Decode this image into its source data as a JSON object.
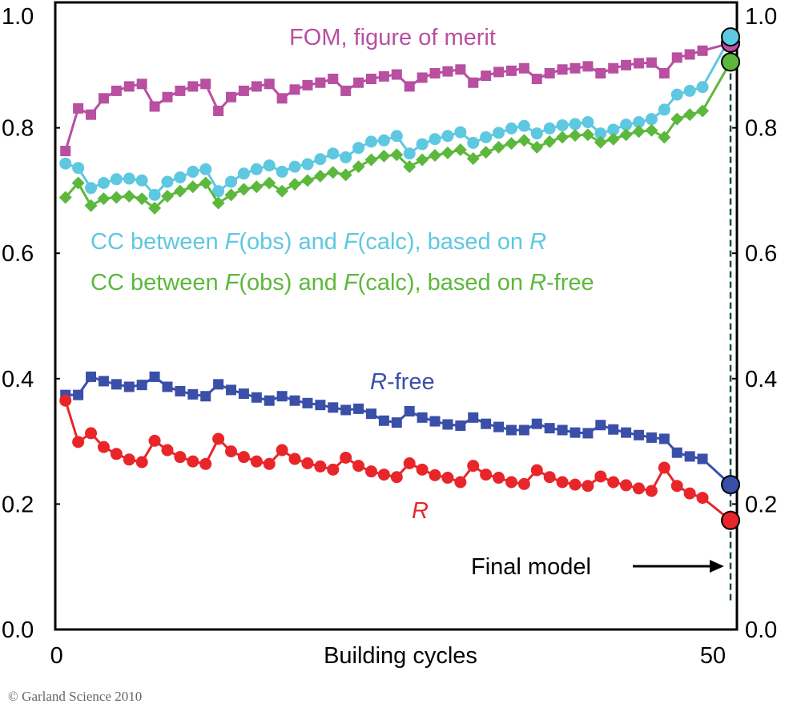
{
  "chart_data": {
    "type": "line",
    "xlabel": "Building cycles",
    "ylabel": "",
    "xlim": [
      -0.8,
      52.7
    ],
    "ylim": [
      0.0,
      1.0
    ],
    "x_ticks": [
      "0",
      "50"
    ],
    "y_ticks": [
      "0.0",
      "0.2",
      "0.4",
      "0.6",
      "0.8",
      "1.0"
    ],
    "y_ticks_right": [
      "0.0",
      "0.2",
      "0.4",
      "0.6",
      "0.8",
      "1.0"
    ],
    "grid": false,
    "x": [
      0,
      1,
      2,
      3,
      4,
      5,
      6,
      7,
      8,
      9,
      10,
      11,
      12,
      13,
      14,
      15,
      16,
      17,
      18,
      19,
      20,
      21,
      22,
      23,
      24,
      25,
      26,
      27,
      28,
      29,
      30,
      31,
      32,
      33,
      34,
      35,
      36,
      37,
      38,
      39,
      40,
      41,
      42,
      43,
      44,
      45,
      46,
      47,
      48,
      49,
      50
    ],
    "final_model_x": 52.2,
    "series": [
      {
        "key": "fom",
        "name": "FOM, figure of merit",
        "color": "#b84fa0",
        "marker": "square",
        "values": [
          0.763,
          0.831,
          0.821,
          0.847,
          0.859,
          0.866,
          0.87,
          0.834,
          0.849,
          0.859,
          0.866,
          0.87,
          0.827,
          0.849,
          0.859,
          0.866,
          0.87,
          0.847,
          0.861,
          0.868,
          0.872,
          0.878,
          0.859,
          0.872,
          0.878,
          0.882,
          0.885,
          0.866,
          0.88,
          0.887,
          0.89,
          0.893,
          0.872,
          0.883,
          0.889,
          0.891,
          0.895,
          0.878,
          0.887,
          0.893,
          0.895,
          0.898,
          0.887,
          0.895,
          0.9,
          0.903,
          0.904,
          0.887,
          0.912,
          0.917,
          0.923
        ],
        "final": 0.935
      },
      {
        "key": "cc_r",
        "name": "CC between F(obs) and F(calc), based on R",
        "color": "#5ec8e0",
        "marker": "circle",
        "values": [
          0.743,
          0.736,
          0.704,
          0.712,
          0.718,
          0.719,
          0.716,
          0.693,
          0.714,
          0.721,
          0.73,
          0.734,
          0.699,
          0.714,
          0.727,
          0.734,
          0.74,
          0.73,
          0.738,
          0.742,
          0.75,
          0.759,
          0.753,
          0.768,
          0.778,
          0.78,
          0.787,
          0.759,
          0.774,
          0.782,
          0.787,
          0.793,
          0.776,
          0.785,
          0.792,
          0.799,
          0.803,
          0.791,
          0.799,
          0.804,
          0.806,
          0.809,
          0.791,
          0.797,
          0.805,
          0.809,
          0.814,
          0.829,
          0.853,
          0.859,
          0.865
        ],
        "final": 0.945
      },
      {
        "key": "cc_rfree",
        "name": "CC between F(obs) and F(calc), based on R-free",
        "color": "#5cb83c",
        "marker": "diamond",
        "values": [
          0.689,
          0.712,
          0.676,
          0.687,
          0.689,
          0.691,
          0.687,
          0.672,
          0.691,
          0.699,
          0.706,
          0.712,
          0.68,
          0.693,
          0.702,
          0.706,
          0.712,
          0.699,
          0.71,
          0.716,
          0.723,
          0.729,
          0.725,
          0.738,
          0.749,
          0.755,
          0.757,
          0.738,
          0.749,
          0.756,
          0.76,
          0.765,
          0.751,
          0.761,
          0.769,
          0.775,
          0.78,
          0.769,
          0.778,
          0.785,
          0.788,
          0.789,
          0.777,
          0.782,
          0.789,
          0.794,
          0.796,
          0.785,
          0.814,
          0.821,
          0.827
        ],
        "final": 0.905
      },
      {
        "key": "rfree",
        "name": "R-free",
        "color": "#3a4fa8",
        "marker": "square",
        "values": [
          0.374,
          0.374,
          0.403,
          0.396,
          0.391,
          0.387,
          0.39,
          0.403,
          0.387,
          0.38,
          0.375,
          0.372,
          0.391,
          0.382,
          0.376,
          0.37,
          0.365,
          0.372,
          0.365,
          0.361,
          0.358,
          0.354,
          0.35,
          0.352,
          0.344,
          0.333,
          0.33,
          0.348,
          0.338,
          0.332,
          0.327,
          0.325,
          0.338,
          0.328,
          0.323,
          0.318,
          0.318,
          0.328,
          0.321,
          0.318,
          0.314,
          0.313,
          0.326,
          0.319,
          0.314,
          0.31,
          0.306,
          0.304,
          0.282,
          0.276,
          0.272
        ],
        "final": 0.231
      },
      {
        "key": "r",
        "name": "R",
        "color": "#e8262a",
        "marker": "circle",
        "values": [
          0.365,
          0.299,
          0.313,
          0.291,
          0.28,
          0.271,
          0.267,
          0.301,
          0.286,
          0.275,
          0.268,
          0.264,
          0.304,
          0.284,
          0.275,
          0.268,
          0.264,
          0.286,
          0.272,
          0.265,
          0.26,
          0.255,
          0.274,
          0.261,
          0.252,
          0.247,
          0.243,
          0.265,
          0.255,
          0.246,
          0.242,
          0.235,
          0.261,
          0.247,
          0.242,
          0.235,
          0.232,
          0.254,
          0.243,
          0.235,
          0.231,
          0.229,
          0.244,
          0.235,
          0.23,
          0.225,
          0.221,
          0.258,
          0.229,
          0.217,
          0.21
        ],
        "final": 0.174
      }
    ],
    "annotations": {
      "fom_label": "FOM, figure of merit",
      "cc_r_label": [
        {
          "t": "CC between ",
          "i": false
        },
        {
          "t": "F",
          "i": true
        },
        {
          "t": "(obs) and ",
          "i": false
        },
        {
          "t": "F",
          "i": true
        },
        {
          "t": "(calc), based on ",
          "i": false
        },
        {
          "t": "R",
          "i": true
        }
      ],
      "cc_rfree_label": [
        {
          "t": "CC between ",
          "i": false
        },
        {
          "t": "F",
          "i": true
        },
        {
          "t": "(obs) and ",
          "i": false
        },
        {
          "t": "F",
          "i": true
        },
        {
          "t": "(calc), based on ",
          "i": false
        },
        {
          "t": "R",
          "i": true
        },
        {
          "t": "-free",
          "i": false
        }
      ],
      "rfree_label": [
        {
          "t": "R",
          "i": true
        },
        {
          "t": "-free",
          "i": false
        }
      ],
      "r_label": [
        {
          "t": "R",
          "i": true
        }
      ],
      "final_model": "Final model"
    }
  },
  "copyright": "© Garland Science 2010"
}
